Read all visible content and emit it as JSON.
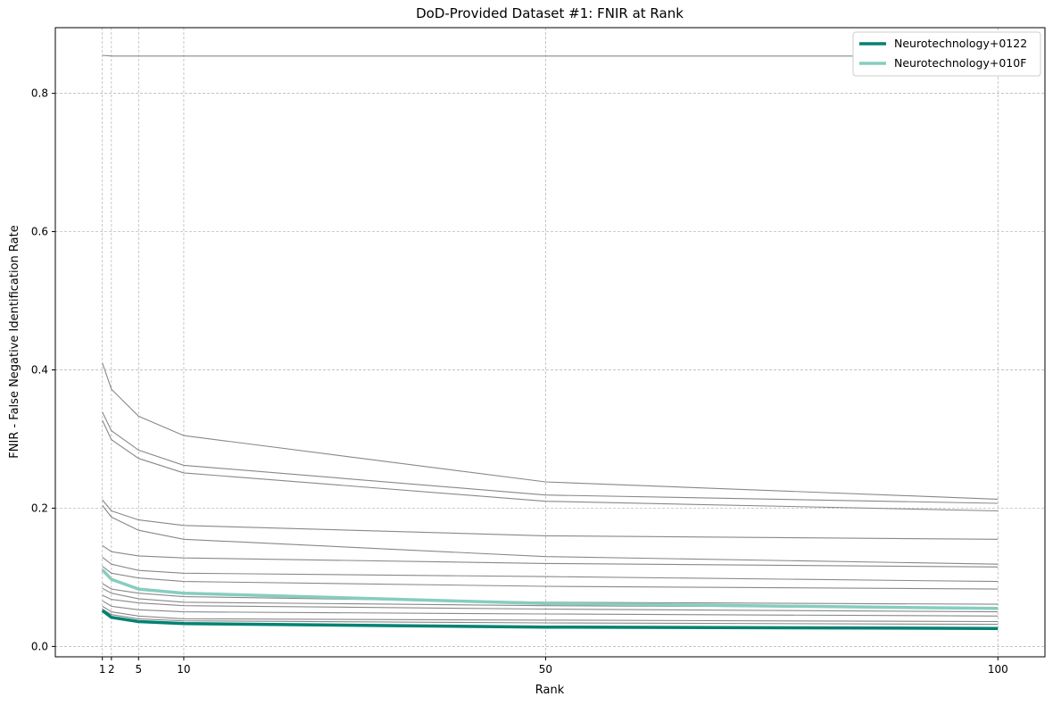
{
  "chart_data": {
    "type": "line",
    "title": "DoD-Provided Dataset #1: FNIR at Rank",
    "xlabel": "Rank",
    "ylabel": "FNIR - False Negative Identification Rate",
    "x": [
      1,
      2,
      5,
      10,
      50,
      100
    ],
    "xticks": [
      "1",
      "2",
      "5",
      "10",
      "50",
      "100"
    ],
    "xlim": [
      -4.2,
      105.2
    ],
    "yticks": [
      "0.0",
      "0.2",
      "0.4",
      "0.6",
      "0.8"
    ],
    "ylim": [
      -0.015,
      0.895
    ],
    "grid": true,
    "legend_position": "top-right",
    "background_series_color": "#888888",
    "background_series": [
      [
        0.855,
        0.854,
        0.854,
        0.854,
        0.854,
        0.854
      ],
      [
        0.41,
        0.372,
        0.333,
        0.305,
        0.238,
        0.213
      ],
      [
        0.339,
        0.312,
        0.284,
        0.262,
        0.219,
        0.207
      ],
      [
        0.327,
        0.299,
        0.272,
        0.251,
        0.21,
        0.196
      ],
      [
        0.212,
        0.196,
        0.183,
        0.175,
        0.16,
        0.155
      ],
      [
        0.204,
        0.187,
        0.168,
        0.155,
        0.13,
        0.119
      ],
      [
        0.146,
        0.137,
        0.131,
        0.128,
        0.12,
        0.115
      ],
      [
        0.129,
        0.119,
        0.11,
        0.106,
        0.101,
        0.094
      ],
      [
        0.116,
        0.106,
        0.099,
        0.094,
        0.087,
        0.083
      ],
      [
        0.091,
        0.083,
        0.077,
        0.072,
        0.064,
        0.061
      ],
      [
        0.084,
        0.077,
        0.069,
        0.064,
        0.059,
        0.056
      ],
      [
        0.074,
        0.068,
        0.063,
        0.059,
        0.054,
        0.05
      ],
      [
        0.066,
        0.058,
        0.053,
        0.05,
        0.047,
        0.044
      ],
      [
        0.058,
        0.05,
        0.044,
        0.04,
        0.038,
        0.036
      ],
      [
        0.054,
        0.046,
        0.04,
        0.037,
        0.034,
        0.032
      ]
    ],
    "series": [
      {
        "name": "Neurotechnology+0122",
        "color": "#008272",
        "values": [
          0.052,
          0.042,
          0.036,
          0.033,
          0.028,
          0.026
        ]
      },
      {
        "name": "Neurotechnology+010F",
        "color": "#86cdbf",
        "values": [
          0.111,
          0.097,
          0.083,
          0.077,
          0.062,
          0.055
        ]
      }
    ]
  }
}
